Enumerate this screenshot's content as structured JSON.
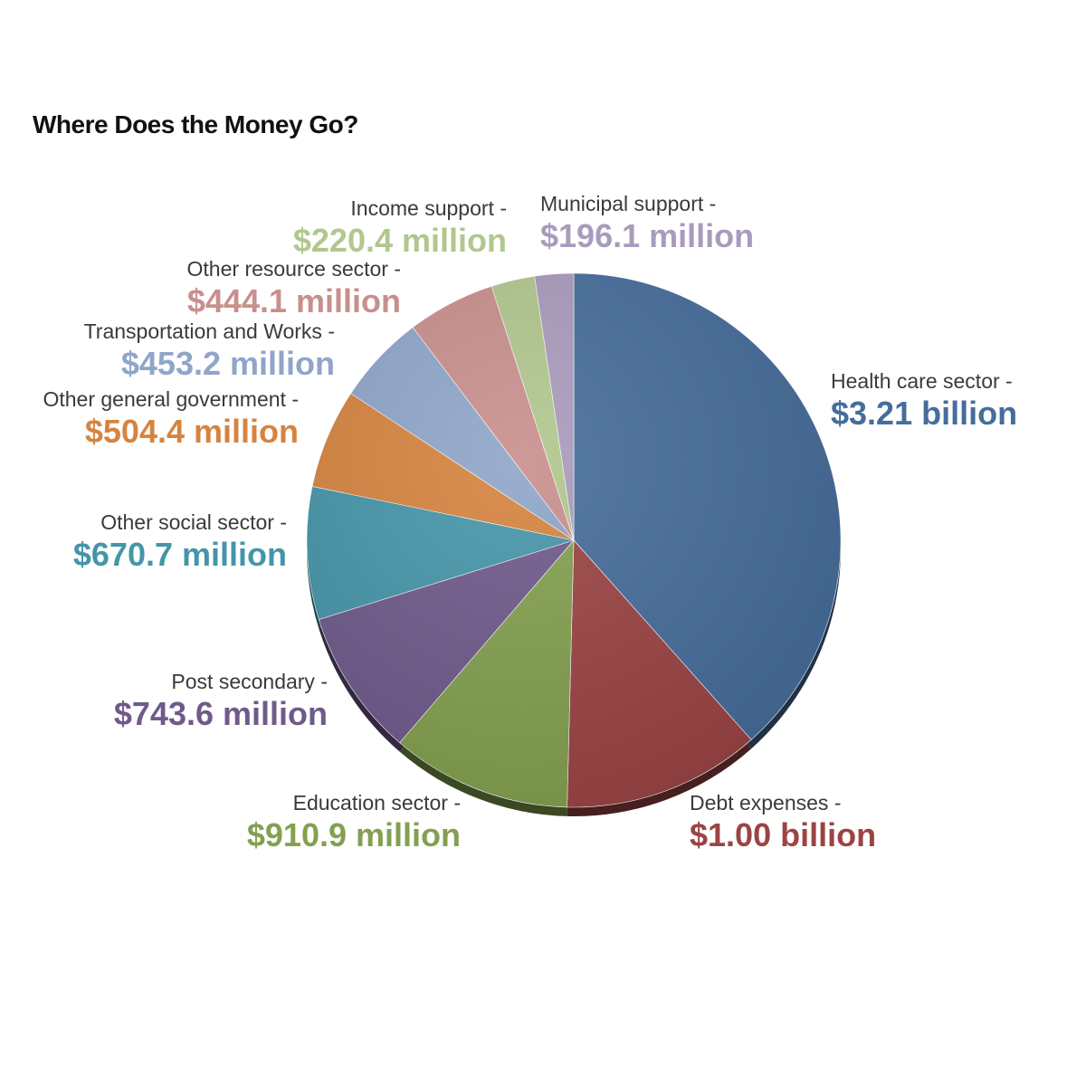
{
  "chart_data": {
    "type": "pie",
    "title": "Where Does the Money Go?",
    "unit": "$ millions",
    "slices": [
      {
        "category": "Health care sector",
        "value": 3210,
        "display_value": "$3.21 billion",
        "color": "#466d9b"
      },
      {
        "category": "Debt expenses",
        "value": 1000,
        "display_value": "$1.00 billion",
        "color": "#9b4444"
      },
      {
        "category": "Education sector",
        "value": 910.9,
        "display_value": "$910.9 million",
        "color": "#83a050"
      },
      {
        "category": "Post secondary",
        "value": 743.6,
        "display_value": "$743.6 million",
        "color": "#6f5a8b"
      },
      {
        "category": "Other social sector",
        "value": 670.7,
        "display_value": "$670.7 million",
        "color": "#4595a9"
      },
      {
        "category": "Other general government",
        "value": 504.4,
        "display_value": "$504.4 million",
        "color": "#d5843f"
      },
      {
        "category": "Transportation and Works",
        "value": 453.2,
        "display_value": "$453.2 million",
        "color": "#8fa5c9"
      },
      {
        "category": "Other resource sector",
        "value": 444.1,
        "display_value": "$444.1 million",
        "color": "#c98f8d"
      },
      {
        "category": "Income support",
        "value": 220.4,
        "display_value": "$220.4 million",
        "color": "#b1c78e"
      },
      {
        "category": "Municipal support",
        "value": 196.1,
        "display_value": "$196.1 million",
        "color": "#a99bbc"
      }
    ]
  }
}
